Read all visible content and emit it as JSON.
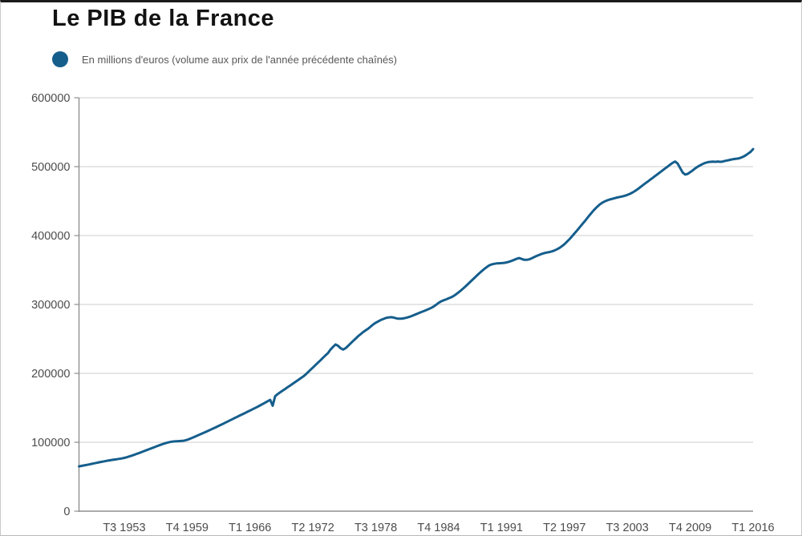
{
  "title": "Le PIB de la France",
  "legend": {
    "label": "En millions d'euros (volume aux prix de l'année précédente chaînés)",
    "marker_color": "#155e8c"
  },
  "colors": {
    "line": "#155e8c",
    "grid": "#cccccc",
    "axis": "#8f8f8f",
    "tick_text": "#4c4c4c",
    "title_text": "#121212"
  },
  "chart_data": {
    "type": "line",
    "title": "Le PIB de la France",
    "ylabel": "",
    "xlabel": "",
    "unit": "millions d'euros (volume aux prix de l'année précédente chaînés)",
    "grid": true,
    "legend_position": "top-left",
    "y_axis": {
      "min": 0,
      "max": 600000,
      "step": 100000
    },
    "x_axis": {
      "start_quarter": "T1 1949",
      "end_quarter": "T1 2016",
      "tick_labels": [
        {
          "label": "T3 1953",
          "index": 18
        },
        {
          "label": "T4 1959",
          "index": 43
        },
        {
          "label": "T1 1966",
          "index": 68
        },
        {
          "label": "T2 1972",
          "index": 93
        },
        {
          "label": "T3 1978",
          "index": 118
        },
        {
          "label": "T4 1984",
          "index": 143
        },
        {
          "label": "T1 1991",
          "index": 168
        },
        {
          "label": "T2 1997",
          "index": 193
        },
        {
          "label": "T3 2003",
          "index": 218
        },
        {
          "label": "T4 2009",
          "index": 243
        },
        {
          "label": "T1 2016",
          "index": 268
        }
      ]
    },
    "series": [
      {
        "name": "PIB de la France",
        "color": "#155e8c",
        "frequency": "quarterly",
        "first_point": "T1 1949",
        "values": [
          65000,
          65700,
          66400,
          67100,
          67800,
          68600,
          69400,
          70100,
          70900,
          71600,
          72300,
          73000,
          73700,
          74300,
          74900,
          75400,
          75900,
          76500,
          77300,
          78300,
          79400,
          80600,
          81900,
          83200,
          84500,
          85900,
          87300,
          88700,
          90100,
          91500,
          92900,
          94300,
          95700,
          97000,
          98200,
          99300,
          100200,
          100900,
          101300,
          101500,
          101700,
          102000,
          102600,
          103600,
          104900,
          106400,
          108000,
          109600,
          111200,
          112800,
          114400,
          116000,
          117700,
          119400,
          121100,
          122800,
          124500,
          126300,
          128100,
          129900,
          131700,
          133500,
          135300,
          137100,
          138900,
          140700,
          142500,
          144300,
          146100,
          147900,
          149700,
          151500,
          153500,
          155500,
          157500,
          159500,
          161500,
          153000,
          167000,
          170000,
          172500,
          175000,
          177500,
          180000,
          182500,
          185000,
          187500,
          190000,
          192500,
          195000,
          198000,
          201500,
          205000,
          208500,
          212000,
          215500,
          219000,
          222500,
          226000,
          229500,
          234500,
          238500,
          242000,
          240000,
          236500,
          234500,
          236500,
          240000,
          243500,
          247000,
          250500,
          254000,
          257000,
          260000,
          262500,
          265000,
          268000,
          271000,
          273500,
          275500,
          277500,
          279000,
          280300,
          281200,
          281500,
          281000,
          280000,
          279300,
          279300,
          279800,
          280600,
          281600,
          282800,
          284300,
          285800,
          287300,
          288800,
          290200,
          291700,
          293300,
          295000,
          297000,
          299500,
          302500,
          304500,
          306000,
          307500,
          309000,
          310500,
          312500,
          315000,
          317800,
          320800,
          324000,
          327300,
          330800,
          334300,
          337800,
          341300,
          344800,
          348000,
          351000,
          354000,
          356500,
          358000,
          359000,
          359500,
          359800,
          360000,
          360300,
          361000,
          362000,
          363300,
          364800,
          366300,
          367300,
          366000,
          364800,
          364800,
          365500,
          367000,
          368800,
          370500,
          372000,
          373500,
          374500,
          375300,
          376000,
          377000,
          378300,
          380000,
          382000,
          384500,
          387500,
          391000,
          394800,
          398800,
          403000,
          407300,
          411800,
          416000,
          420500,
          425000,
          429500,
          434000,
          438000,
          441800,
          445000,
          447500,
          449500,
          451000,
          452300,
          453300,
          454300,
          455200,
          456000,
          456800,
          457800,
          459000,
          460500,
          462300,
          464500,
          467000,
          469800,
          472500,
          475300,
          478000,
          480800,
          483500,
          486300,
          489000,
          491800,
          494500,
          497300,
          500000,
          502800,
          505500,
          507500,
          504500,
          498000,
          491500,
          488500,
          489500,
          492000,
          494500,
          497500,
          500000,
          502000,
          504000,
          505500,
          506500,
          507000,
          507300,
          507000,
          507400,
          507000,
          507500,
          508500,
          509200,
          510000,
          510800,
          511300,
          511800,
          512800,
          514300,
          516300,
          518800,
          521500,
          525500
        ]
      }
    ]
  }
}
